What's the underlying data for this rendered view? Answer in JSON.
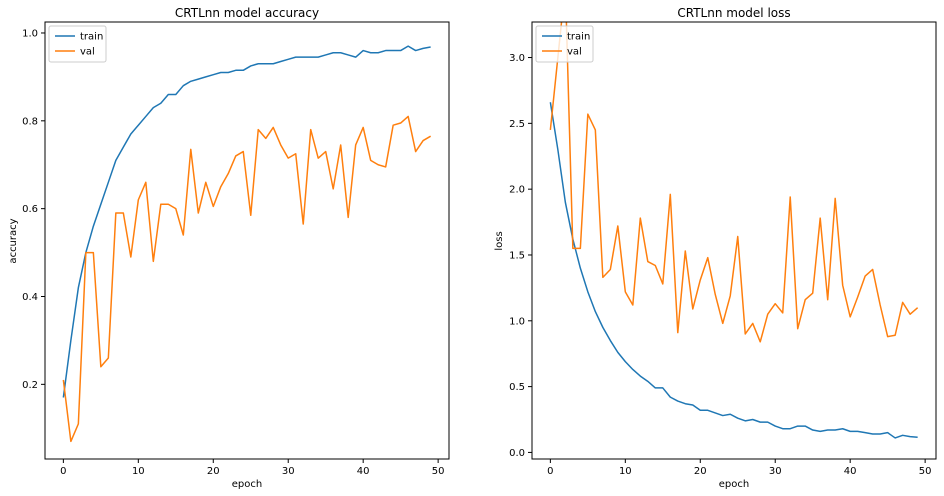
{
  "chart_data": [
    {
      "type": "line",
      "title": "CRTLnn model accuracy",
      "xlabel": "epoch",
      "ylabel": "accuracy",
      "xlim": [
        -2.45,
        51.45
      ],
      "ylim": [
        0.03,
        1.025
      ],
      "xticks": [
        0,
        10,
        20,
        30,
        40,
        50
      ],
      "yticks": [
        0.2,
        0.4,
        0.6,
        0.8,
        1.0
      ],
      "ytick_labels": [
        "0.2",
        "0.4",
        "0.6",
        "0.8",
        "1.0"
      ],
      "legend": {
        "location": "upper left",
        "entries": [
          "train",
          "val"
        ]
      },
      "series": [
        {
          "name": "train",
          "color": "#1f77b4",
          "x": [
            0,
            1,
            2,
            3,
            4,
            5,
            6,
            7,
            8,
            9,
            10,
            11,
            12,
            13,
            14,
            15,
            16,
            17,
            18,
            19,
            20,
            21,
            22,
            23,
            24,
            25,
            26,
            27,
            28,
            29,
            30,
            31,
            32,
            33,
            34,
            35,
            36,
            37,
            38,
            39,
            40,
            41,
            42,
            43,
            44,
            45,
            46,
            47,
            48,
            49
          ],
          "values": [
            0.17,
            0.3,
            0.42,
            0.5,
            0.56,
            0.61,
            0.66,
            0.71,
            0.74,
            0.77,
            0.79,
            0.81,
            0.83,
            0.84,
            0.86,
            0.86,
            0.88,
            0.89,
            0.895,
            0.9,
            0.905,
            0.91,
            0.91,
            0.915,
            0.915,
            0.925,
            0.93,
            0.93,
            0.93,
            0.935,
            0.94,
            0.945,
            0.945,
            0.945,
            0.945,
            0.95,
            0.955,
            0.955,
            0.95,
            0.945,
            0.96,
            0.955,
            0.955,
            0.96,
            0.96,
            0.96,
            0.97,
            0.96,
            0.965,
            0.968
          ]
        },
        {
          "name": "val",
          "color": "#ff7f0e",
          "x": [
            0,
            1,
            2,
            3,
            4,
            5,
            6,
            7,
            8,
            9,
            10,
            11,
            12,
            13,
            14,
            15,
            16,
            17,
            18,
            19,
            20,
            21,
            22,
            23,
            24,
            25,
            26,
            27,
            28,
            29,
            30,
            31,
            32,
            33,
            34,
            35,
            36,
            37,
            38,
            39,
            40,
            41,
            42,
            43,
            44,
            45,
            46,
            47,
            48,
            49
          ],
          "values": [
            0.21,
            0.07,
            0.11,
            0.5,
            0.5,
            0.24,
            0.26,
            0.59,
            0.59,
            0.49,
            0.62,
            0.66,
            0.48,
            0.61,
            0.61,
            0.6,
            0.54,
            0.735,
            0.59,
            0.66,
            0.605,
            0.65,
            0.68,
            0.72,
            0.73,
            0.585,
            0.78,
            0.76,
            0.785,
            0.745,
            0.715,
            0.725,
            0.565,
            0.78,
            0.715,
            0.73,
            0.645,
            0.745,
            0.58,
            0.745,
            0.785,
            0.71,
            0.7,
            0.695,
            0.79,
            0.795,
            0.81,
            0.73,
            0.755,
            0.765
          ]
        }
      ]
    },
    {
      "type": "line",
      "title": "CRTLnn model loss",
      "xlabel": "epoch",
      "ylabel": "loss",
      "xlim": [
        -2.45,
        51.45
      ],
      "ylim": [
        -0.05,
        3.27
      ],
      "xticks": [
        0,
        10,
        20,
        30,
        40,
        50
      ],
      "yticks": [
        0.0,
        0.5,
        1.0,
        1.5,
        2.0,
        2.5,
        3.0
      ],
      "ytick_labels": [
        "0.0",
        "0.5",
        "1.0",
        "1.5",
        "2.0",
        "2.5",
        "3.0"
      ],
      "legend": {
        "location": "upper left",
        "entries": [
          "train",
          "val"
        ]
      },
      "series": [
        {
          "name": "train",
          "color": "#1f77b4",
          "x": [
            0,
            1,
            2,
            3,
            4,
            5,
            6,
            7,
            8,
            9,
            10,
            11,
            12,
            13,
            14,
            15,
            16,
            17,
            18,
            19,
            20,
            21,
            22,
            23,
            24,
            25,
            26,
            27,
            28,
            29,
            30,
            31,
            32,
            33,
            34,
            35,
            36,
            37,
            38,
            39,
            40,
            41,
            42,
            43,
            44,
            45,
            46,
            47,
            48,
            49
          ],
          "values": [
            2.66,
            2.3,
            1.9,
            1.62,
            1.4,
            1.22,
            1.07,
            0.95,
            0.85,
            0.76,
            0.69,
            0.63,
            0.58,
            0.54,
            0.49,
            0.49,
            0.42,
            0.39,
            0.37,
            0.36,
            0.32,
            0.32,
            0.3,
            0.28,
            0.29,
            0.26,
            0.24,
            0.25,
            0.23,
            0.23,
            0.2,
            0.18,
            0.18,
            0.2,
            0.2,
            0.17,
            0.16,
            0.17,
            0.17,
            0.18,
            0.16,
            0.16,
            0.15,
            0.14,
            0.14,
            0.15,
            0.11,
            0.13,
            0.12,
            0.115
          ]
        },
        {
          "name": "val",
          "color": "#ff7f0e",
          "x": [
            0,
            1,
            2,
            3,
            4,
            5,
            6,
            7,
            8,
            9,
            10,
            11,
            12,
            13,
            14,
            15,
            16,
            17,
            18,
            19,
            20,
            21,
            22,
            23,
            24,
            25,
            26,
            27,
            28,
            29,
            30,
            31,
            32,
            33,
            34,
            35,
            36,
            37,
            38,
            39,
            40,
            41,
            42,
            43,
            44,
            45,
            46,
            47,
            48,
            49
          ],
          "values": [
            2.45,
            3.0,
            3.55,
            1.55,
            1.55,
            2.57,
            2.45,
            1.33,
            1.39,
            1.72,
            1.22,
            1.12,
            1.78,
            1.45,
            1.42,
            1.28,
            1.96,
            0.91,
            1.53,
            1.09,
            1.31,
            1.48,
            1.2,
            0.98,
            1.19,
            1.64,
            0.9,
            0.98,
            0.84,
            1.05,
            1.13,
            1.06,
            1.94,
            0.94,
            1.16,
            1.21,
            1.78,
            1.16,
            1.93,
            1.27,
            1.03,
            1.18,
            1.34,
            1.39,
            1.12,
            0.88,
            0.89,
            1.14,
            1.05,
            1.1
          ]
        }
      ]
    }
  ]
}
